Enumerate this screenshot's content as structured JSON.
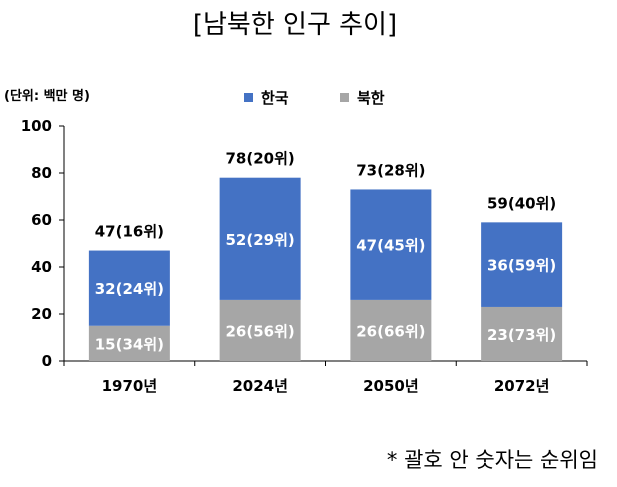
{
  "chart_data": {
    "type": "bar",
    "stacked": true,
    "title": "[남북한 인구 추이]",
    "unit_label": "(단위: 백만 명)",
    "categories": [
      "1970년",
      "2024년",
      "2050년",
      "2072년"
    ],
    "series": [
      {
        "name": "한국",
        "color": "#4472c4",
        "values": [
          32,
          52,
          47,
          36
        ],
        "labels": [
          "32(24위)",
          "52(29위)",
          "47(45위)",
          "36(59위)"
        ]
      },
      {
        "name": "북한",
        "color": "#a6a6a6",
        "values": [
          15,
          26,
          26,
          23
        ],
        "labels": [
          "15(34위)",
          "26(56위)",
          "26(66위)",
          "23(73위)"
        ]
      }
    ],
    "totals": [
      "47(16위)",
      "78(20위)",
      "73(28위)",
      "59(40위)"
    ],
    "ylim": [
      0,
      100
    ],
    "yticks": [
      0,
      20,
      40,
      60,
      80,
      100
    ],
    "legend_position": "top-center",
    "grid": false
  },
  "note": "* 괄호 안 숫자는 순위임"
}
